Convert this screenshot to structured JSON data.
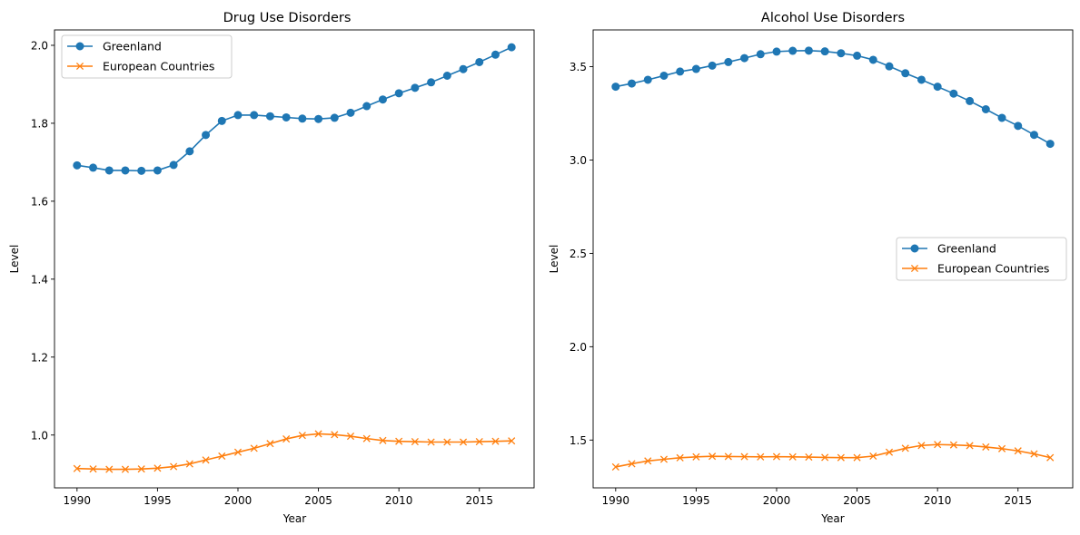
{
  "chart_data": [
    {
      "type": "line",
      "title": "Drug Use Disorders",
      "xlabel": "Year",
      "ylabel": "Level",
      "xlim": [
        1988.6,
        2018.4
      ],
      "ylim": [
        0.8645,
        2.0395
      ],
      "xticks": [
        1990,
        1995,
        2000,
        2005,
        2010,
        2015
      ],
      "yticks": [
        1.0,
        1.2,
        1.4,
        1.6,
        1.8,
        2.0
      ],
      "ytick_labels": [
        "1.0",
        "1.2",
        "1.4",
        "1.6",
        "1.8",
        "2.0"
      ],
      "legend_position": "upper-left",
      "x": [
        1990,
        1991,
        1992,
        1993,
        1994,
        1995,
        1996,
        1997,
        1998,
        1999,
        2000,
        2001,
        2002,
        2003,
        2004,
        2005,
        2006,
        2007,
        2008,
        2009,
        2010,
        2011,
        2012,
        2013,
        2014,
        2015,
        2016,
        2017
      ],
      "series": [
        {
          "name": "Greenland",
          "color": "#1f77b4",
          "marker": "circle",
          "values": [
            1.692,
            1.686,
            1.679,
            1.679,
            1.678,
            1.679,
            1.693,
            1.728,
            1.77,
            1.806,
            1.821,
            1.821,
            1.818,
            1.815,
            1.812,
            1.811,
            1.814,
            1.827,
            1.844,
            1.861,
            1.877,
            1.891,
            1.905,
            1.922,
            1.939,
            1.957,
            1.976,
            1.995
          ]
        },
        {
          "name": "European Countries",
          "color": "#ff7f0e",
          "marker": "x",
          "values": [
            0.914,
            0.913,
            0.912,
            0.912,
            0.913,
            0.915,
            0.919,
            0.926,
            0.936,
            0.946,
            0.956,
            0.966,
            0.978,
            0.99,
            0.999,
            1.003,
            1.001,
            0.997,
            0.991,
            0.986,
            0.984,
            0.983,
            0.982,
            0.982,
            0.982,
            0.983,
            0.984,
            0.985
          ]
        }
      ]
    },
    {
      "type": "line",
      "title": "Alcohol Use Disorders",
      "xlabel": "Year",
      "ylabel": "Level",
      "xlim": [
        1988.6,
        2018.4
      ],
      "ylim": [
        1.244,
        3.697
      ],
      "xticks": [
        1990,
        1995,
        2000,
        2005,
        2010,
        2015
      ],
      "yticks": [
        1.5,
        2.0,
        2.5,
        3.0,
        3.5
      ],
      "ytick_labels": [
        "1.5",
        "2.0",
        "2.5",
        "3.0",
        "3.5"
      ],
      "legend_position": "center-right",
      "x": [
        1990,
        1991,
        1992,
        1993,
        1994,
        1995,
        1996,
        1997,
        1998,
        1999,
        2000,
        2001,
        2002,
        2003,
        2004,
        2005,
        2006,
        2007,
        2008,
        2009,
        2010,
        2011,
        2012,
        2013,
        2014,
        2015,
        2016,
        2017
      ],
      "series": [
        {
          "name": "Greenland",
          "color": "#1f77b4",
          "marker": "circle",
          "values": [
            3.393,
            3.41,
            3.43,
            3.452,
            3.474,
            3.488,
            3.506,
            3.525,
            3.546,
            3.567,
            3.581,
            3.585,
            3.586,
            3.582,
            3.572,
            3.559,
            3.537,
            3.502,
            3.465,
            3.43,
            3.393,
            3.356,
            3.316,
            3.272,
            3.226,
            3.183,
            3.135,
            3.087
          ]
        },
        {
          "name": "European Countries",
          "color": "#ff7f0e",
          "marker": "x",
          "values": [
            1.356,
            1.373,
            1.388,
            1.397,
            1.405,
            1.41,
            1.413,
            1.412,
            1.411,
            1.41,
            1.411,
            1.41,
            1.409,
            1.407,
            1.406,
            1.406,
            1.414,
            1.435,
            1.456,
            1.471,
            1.476,
            1.474,
            1.47,
            1.463,
            1.454,
            1.442,
            1.426,
            1.406
          ]
        }
      ]
    }
  ]
}
